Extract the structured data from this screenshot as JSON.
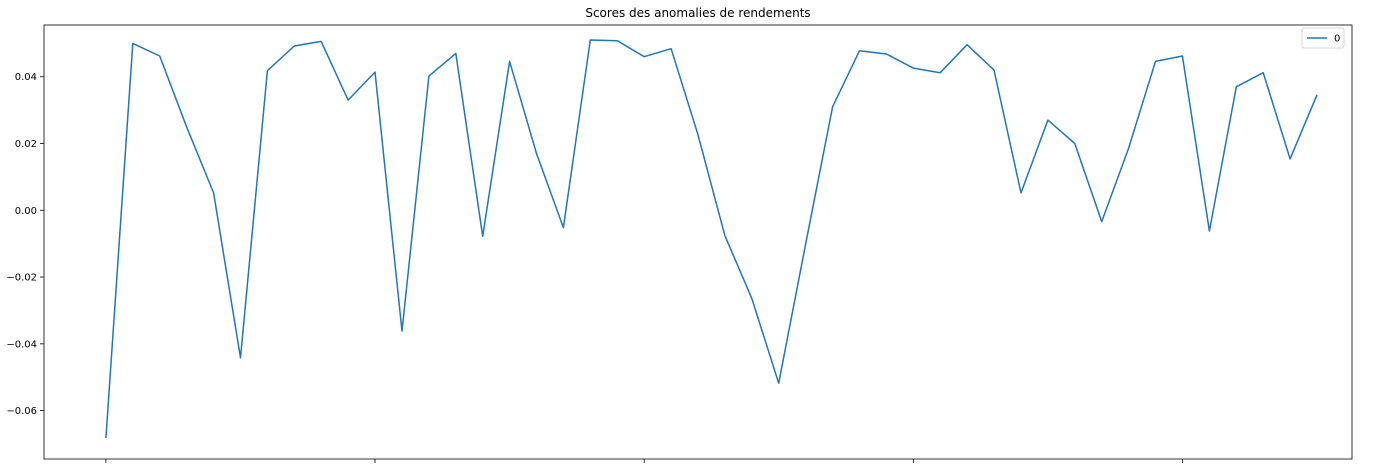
{
  "chart_data": {
    "type": "line",
    "title": "Scores des anomalies de rendements",
    "xlabel": "",
    "ylabel": "",
    "x_tick_labels": [],
    "x_range": [
      -2.3,
      46.3
    ],
    "ylim": [
      -0.0745,
      0.0555
    ],
    "y_ticks": [
      -0.06,
      -0.04,
      -0.02,
      0.0,
      0.02,
      0.04
    ],
    "y_tick_labels": [
      "−0.06",
      "−0.04",
      "−0.02",
      "0.00",
      "0.02",
      "0.04"
    ],
    "x_ticks": [
      0,
      10,
      20,
      30,
      40
    ],
    "grid": false,
    "legend": {
      "position": "top-right",
      "entries": [
        "0"
      ]
    },
    "series": [
      {
        "name": "0",
        "color": "#1f77b4",
        "x": [
          0,
          1,
          2,
          3,
          4,
          5,
          6,
          7,
          8,
          9,
          10,
          11,
          12,
          13,
          14,
          15,
          16,
          17,
          18,
          19,
          20,
          21,
          22,
          23,
          24,
          25,
          26,
          27,
          28,
          29,
          30,
          31,
          32,
          33,
          34,
          35,
          36,
          37,
          38,
          39,
          40,
          41,
          42,
          43,
          44,
          45
        ],
        "values": [
          -0.0682,
          0.05,
          0.0462,
          0.025,
          0.0052,
          -0.0442,
          0.0418,
          0.0492,
          0.0506,
          0.033,
          0.0414,
          -0.0362,
          0.0402,
          0.047,
          -0.0078,
          0.0446,
          0.017,
          -0.0052,
          0.051,
          0.0508,
          0.046,
          0.0484,
          0.0226,
          -0.0076,
          -0.0264,
          -0.0518,
          -0.01,
          0.031,
          0.0478,
          0.0468,
          0.0426,
          0.0412,
          0.0496,
          0.042,
          0.0052,
          0.027,
          0.02,
          -0.0034,
          0.0186,
          0.0446,
          0.0462,
          -0.0062,
          0.037,
          0.0412,
          0.0154,
          0.0346
        ]
      }
    ]
  }
}
